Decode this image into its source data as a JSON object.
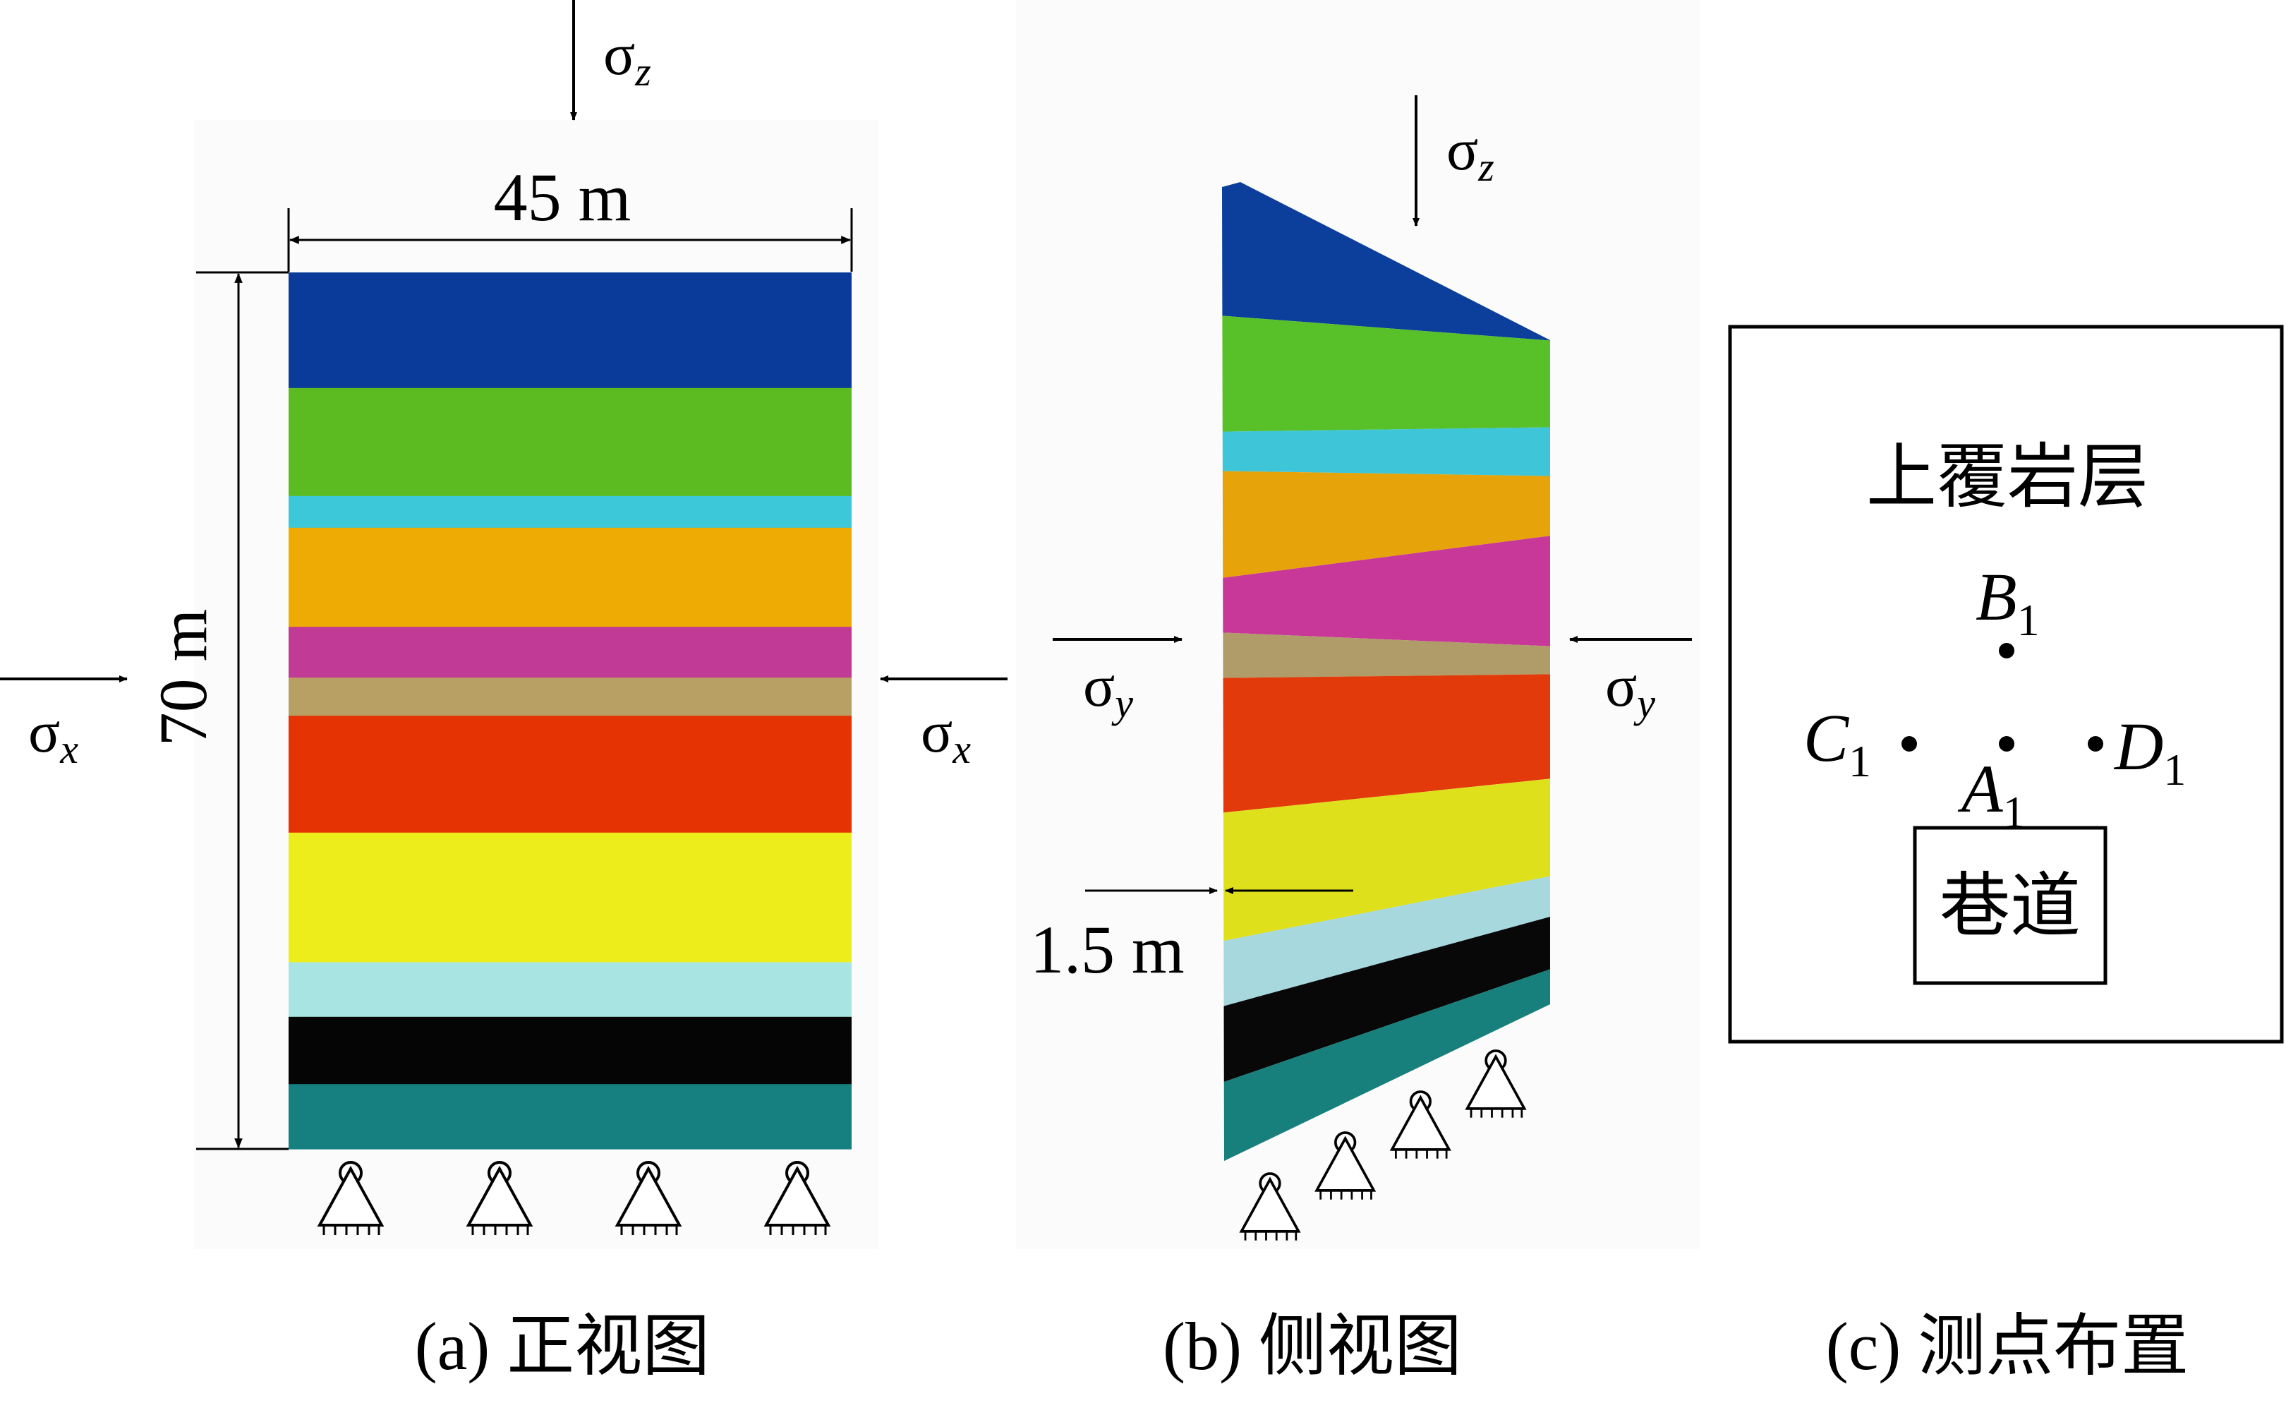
{
  "front_view": {
    "width_label": "45 m",
    "height_label": "70 m",
    "sigma_symbol": "σ",
    "load_top_sub": "z",
    "load_side_sub": "x",
    "layers": [
      {
        "color": "#0a3a9a",
        "thickness_m": 9.1
      },
      {
        "color": "#5dbb22",
        "thickness_m": 8.5
      },
      {
        "color": "#3cc8d8",
        "thickness_m": 2.5
      },
      {
        "color": "#eeab04",
        "thickness_m": 7.8
      },
      {
        "color": "#c03a96",
        "thickness_m": 4.0
      },
      {
        "color": "#b8a064",
        "thickness_m": 3.0
      },
      {
        "color": "#e63304",
        "thickness_m": 9.2
      },
      {
        "color": "#eded1c",
        "thickness_m": 10.2
      },
      {
        "color": "#a8e4e2",
        "thickness_m": 4.3
      },
      {
        "color": "#050505",
        "thickness_m": 5.3
      },
      {
        "color": "#168080",
        "thickness_m": 5.1
      }
    ],
    "support_count": 4,
    "caption": "(a) 正视图"
  },
  "side_view": {
    "thickness_label": "1.5 m",
    "sigma_symbol": "σ",
    "load_top_sub": "z",
    "load_side_sub": "y",
    "support_count": 4,
    "caption": "(b) 侧视图"
  },
  "measurement_layout": {
    "overburden_label": "上覆岩层",
    "tunnel_label": "巷道",
    "points": [
      {
        "letter": "B",
        "sub": "1"
      },
      {
        "letter": "C",
        "sub": "1"
      },
      {
        "letter": "A",
        "sub": "1"
      },
      {
        "letter": "D",
        "sub": "1"
      }
    ],
    "caption": "(c) 测点布置"
  },
  "colors": {
    "stroke": "#000000",
    "background": "#ffffff",
    "panel_background": "#fbfbfb"
  }
}
